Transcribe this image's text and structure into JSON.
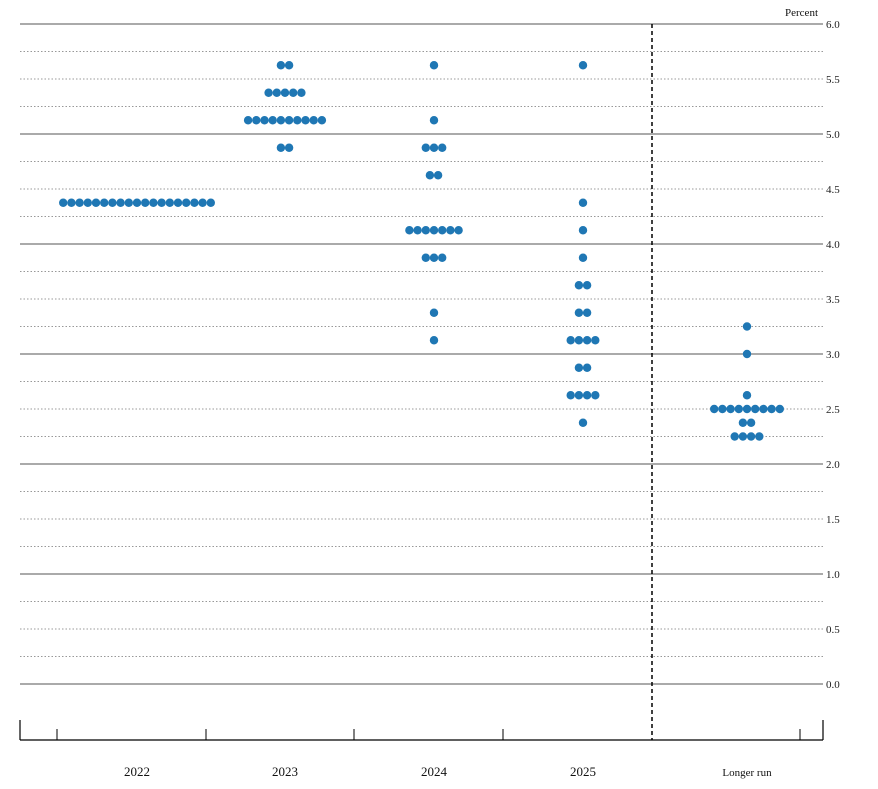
{
  "chart_data": {
    "type": "scatter",
    "unit_label": "Percent",
    "ylim": [
      0.0,
      6.0
    ],
    "y_ticks": [
      "0.0",
      "0.5",
      "1.0",
      "1.5",
      "2.0",
      "2.5",
      "3.0",
      "3.5",
      "4.0",
      "4.5",
      "5.0",
      "5.5",
      "6.0"
    ],
    "grid": true,
    "categories": [
      "2022",
      "2023",
      "2024",
      "2025",
      "Longer run"
    ],
    "dot_color": "#1f77b4",
    "dots": [
      {
        "category": "2022",
        "y": 4.375,
        "count": 19
      },
      {
        "category": "2023",
        "y": 5.625,
        "count": 2
      },
      {
        "category": "2023",
        "y": 5.375,
        "count": 5
      },
      {
        "category": "2023",
        "y": 5.125,
        "count": 10
      },
      {
        "category": "2023",
        "y": 4.875,
        "count": 2
      },
      {
        "category": "2024",
        "y": 5.625,
        "count": 1
      },
      {
        "category": "2024",
        "y": 5.125,
        "count": 1
      },
      {
        "category": "2024",
        "y": 4.875,
        "count": 3
      },
      {
        "category": "2024",
        "y": 4.625,
        "count": 2
      },
      {
        "category": "2024",
        "y": 4.125,
        "count": 7
      },
      {
        "category": "2024",
        "y": 3.875,
        "count": 3
      },
      {
        "category": "2024",
        "y": 3.375,
        "count": 1
      },
      {
        "category": "2024",
        "y": 3.125,
        "count": 1
      },
      {
        "category": "2025",
        "y": 5.625,
        "count": 1
      },
      {
        "category": "2025",
        "y": 4.375,
        "count": 1
      },
      {
        "category": "2025",
        "y": 4.125,
        "count": 1
      },
      {
        "category": "2025",
        "y": 3.875,
        "count": 1
      },
      {
        "category": "2025",
        "y": 3.625,
        "count": 2
      },
      {
        "category": "2025",
        "y": 3.375,
        "count": 2
      },
      {
        "category": "2025",
        "y": 3.125,
        "count": 4
      },
      {
        "category": "2025",
        "y": 2.875,
        "count": 2
      },
      {
        "category": "2025",
        "y": 2.625,
        "count": 4
      },
      {
        "category": "2025",
        "y": 2.375,
        "count": 1
      },
      {
        "category": "Longer run",
        "y": 3.25,
        "count": 1
      },
      {
        "category": "Longer run",
        "y": 3.0,
        "count": 1
      },
      {
        "category": "Longer run",
        "y": 2.625,
        "count": 1
      },
      {
        "category": "Longer run",
        "y": 2.5,
        "count": 9
      },
      {
        "category": "Longer run",
        "y": 2.375,
        "count": 2
      },
      {
        "category": "Longer run",
        "y": 2.25,
        "count": 4
      }
    ]
  }
}
